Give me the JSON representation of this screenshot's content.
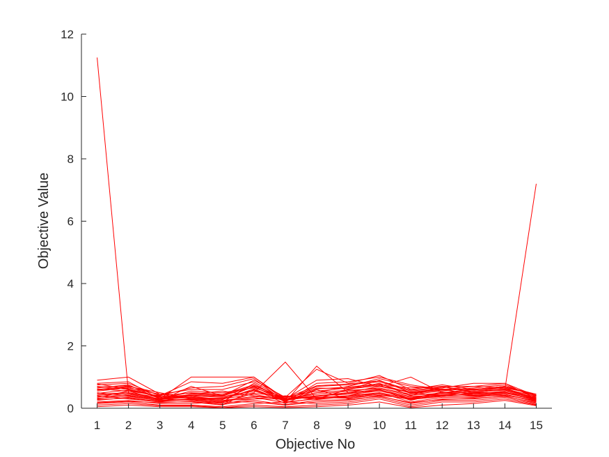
{
  "chart_data": {
    "type": "line",
    "title": "",
    "xlabel": "Objective No",
    "ylabel": "Objective Value",
    "xlim": [
      0.5,
      15.5
    ],
    "ylim": [
      0,
      12
    ],
    "x_ticks": [
      1,
      2,
      3,
      4,
      5,
      6,
      7,
      8,
      9,
      10,
      11,
      12,
      13,
      14,
      15
    ],
    "y_ticks": [
      0,
      2,
      4,
      6,
      8,
      10,
      12
    ],
    "x_tick_labels": [
      "1",
      "2",
      "3",
      "4",
      "5",
      "6",
      "7",
      "8",
      "9",
      "10",
      "11",
      "12",
      "13",
      "14",
      "15"
    ],
    "y_tick_labels": [
      "0",
      "2",
      "4",
      "6",
      "8",
      "10",
      "12"
    ],
    "grid": false,
    "legend": "none",
    "line_color": "#ff0000",
    "axis_color": "#262626",
    "x": [
      1,
      2,
      3,
      4,
      5,
      6,
      7,
      8,
      9,
      10,
      11,
      12,
      13,
      14,
      15
    ],
    "series": [
      {
        "values": [
          11.25,
          0.5,
          0.3,
          0.35,
          0.25,
          0.3,
          0.3,
          0.35,
          0.4,
          0.5,
          0.3,
          0.4,
          0.5,
          0.6,
          7.2
        ]
      },
      {
        "values": [
          0.9,
          1.0,
          0.45,
          0.3,
          0.2,
          0.8,
          0.2,
          0.3,
          0.6,
          0.9,
          0.5,
          0.6,
          0.7,
          0.8,
          0.3
        ]
      },
      {
        "values": [
          0.8,
          0.85,
          0.3,
          1.0,
          1.0,
          1.0,
          0.3,
          0.4,
          0.5,
          0.7,
          1.0,
          0.5,
          0.6,
          0.7,
          0.4
        ]
      },
      {
        "values": [
          0.7,
          0.6,
          0.35,
          0.4,
          0.35,
          0.5,
          1.48,
          0.3,
          0.6,
          0.8,
          0.4,
          0.7,
          0.5,
          0.6,
          0.3
        ]
      },
      {
        "values": [
          0.6,
          0.7,
          0.5,
          0.3,
          0.3,
          0.7,
          0.2,
          1.35,
          0.5,
          0.6,
          0.3,
          0.5,
          0.4,
          0.5,
          0.35
        ]
      },
      {
        "values": [
          0.5,
          0.4,
          0.25,
          0.7,
          0.4,
          0.9,
          0.35,
          1.25,
          0.8,
          1.05,
          0.6,
          0.75,
          0.6,
          0.7,
          0.4
        ]
      },
      {
        "values": [
          0.4,
          0.3,
          0.2,
          0.45,
          0.55,
          0.4,
          0.3,
          0.9,
          0.95,
          0.7,
          0.5,
          0.4,
          0.5,
          0.5,
          0.25
        ]
      },
      {
        "values": [
          0.35,
          0.55,
          0.4,
          0.85,
          0.8,
          1.0,
          0.25,
          0.5,
          0.7,
          0.95,
          0.7,
          0.6,
          0.45,
          0.55,
          0.3
        ]
      },
      {
        "values": [
          0.3,
          0.45,
          0.3,
          0.25,
          0.15,
          0.3,
          0.4,
          0.3,
          0.4,
          0.6,
          0.25,
          0.5,
          0.55,
          0.65,
          0.45
        ]
      },
      {
        "values": [
          0.25,
          0.35,
          0.2,
          0.2,
          0.1,
          0.6,
          0.15,
          0.6,
          0.3,
          0.5,
          0.2,
          0.35,
          0.35,
          0.45,
          0.2
        ]
      },
      {
        "values": [
          0.2,
          0.25,
          0.15,
          0.15,
          0.2,
          0.2,
          0.1,
          0.2,
          0.25,
          0.4,
          0.15,
          0.3,
          0.3,
          0.4,
          0.15
        ]
      },
      {
        "values": [
          0.15,
          0.2,
          0.1,
          0.1,
          0.05,
          0.15,
          0.2,
          0.15,
          0.2,
          0.35,
          0.1,
          0.25,
          0.25,
          0.35,
          0.12
        ]
      },
      {
        "values": [
          0.1,
          0.15,
          0.08,
          0.08,
          0.02,
          0.1,
          0.05,
          0.1,
          0.15,
          0.3,
          0.05,
          0.2,
          0.2,
          0.3,
          0.1
        ]
      },
      {
        "values": [
          0.05,
          0.1,
          0.05,
          0.05,
          0.01,
          0.05,
          0.02,
          0.05,
          0.1,
          0.2,
          0.02,
          0.1,
          0.15,
          0.25,
          0.08
        ]
      },
      {
        "values": [
          0.45,
          0.5,
          0.35,
          0.5,
          0.45,
          0.75,
          0.3,
          0.45,
          0.55,
          0.65,
          0.45,
          0.55,
          0.65,
          0.75,
          0.35
        ]
      },
      {
        "values": [
          0.55,
          0.65,
          0.45,
          0.6,
          0.6,
          0.85,
          0.25,
          0.7,
          0.75,
          0.85,
          0.55,
          0.65,
          0.8,
          0.8,
          0.4
        ]
      },
      {
        "values": [
          0.65,
          0.75,
          0.3,
          0.55,
          0.5,
          0.65,
          0.35,
          0.55,
          0.65,
          0.75,
          0.65,
          0.7,
          0.7,
          0.65,
          0.3
        ]
      },
      {
        "values": [
          0.75,
          0.8,
          0.4,
          0.65,
          0.7,
          0.95,
          0.2,
          0.8,
          0.85,
          1.0,
          0.75,
          0.6,
          0.6,
          0.7,
          0.45
        ]
      },
      {
        "values": [
          0.38,
          0.42,
          0.28,
          0.35,
          0.3,
          0.45,
          0.25,
          0.4,
          0.45,
          0.55,
          0.35,
          0.45,
          0.45,
          0.5,
          0.28
        ]
      },
      {
        "values": [
          0.28,
          0.32,
          0.22,
          0.28,
          0.22,
          0.35,
          0.18,
          0.32,
          0.35,
          0.45,
          0.28,
          0.38,
          0.4,
          0.45,
          0.22
        ]
      },
      {
        "values": [
          0.48,
          0.58,
          0.38,
          0.42,
          0.38,
          0.55,
          0.28,
          0.5,
          0.58,
          0.62,
          0.42,
          0.48,
          0.52,
          0.58,
          0.32
        ]
      },
      {
        "values": [
          0.58,
          0.68,
          0.32,
          0.38,
          0.28,
          0.62,
          0.22,
          0.62,
          0.68,
          0.78,
          0.48,
          0.58,
          0.62,
          0.62,
          0.38
        ]
      },
      {
        "values": [
          0.68,
          0.72,
          0.42,
          0.48,
          0.42,
          0.72,
          0.32,
          0.72,
          0.78,
          0.88,
          0.58,
          0.68,
          0.58,
          0.68,
          0.42
        ]
      },
      {
        "values": [
          0.78,
          0.62,
          0.36,
          0.32,
          0.32,
          0.58,
          0.26,
          0.38,
          0.48,
          0.58,
          0.38,
          0.42,
          0.48,
          0.52,
          0.26
        ]
      },
      {
        "values": [
          0.18,
          0.22,
          0.18,
          0.22,
          0.12,
          0.25,
          0.12,
          0.25,
          0.28,
          0.38,
          0.18,
          0.28,
          0.32,
          0.38,
          0.18
        ]
      },
      {
        "values": [
          0.42,
          0.48,
          0.26,
          0.26,
          0.18,
          0.48,
          0.38,
          0.28,
          0.38,
          0.48,
          0.32,
          0.52,
          0.42,
          0.48,
          0.3
        ]
      },
      {
        "values": [
          0.32,
          0.38,
          0.24,
          0.3,
          0.25,
          0.38,
          0.3,
          0.35,
          0.32,
          0.42,
          0.3,
          0.42,
          0.38,
          0.42,
          0.24
        ]
      },
      {
        "values": [
          0.62,
          0.55,
          0.28,
          0.45,
          0.4,
          0.68,
          0.27,
          0.65,
          0.62,
          0.72,
          0.52,
          0.62,
          0.55,
          0.6,
          0.34
        ]
      }
    ]
  }
}
